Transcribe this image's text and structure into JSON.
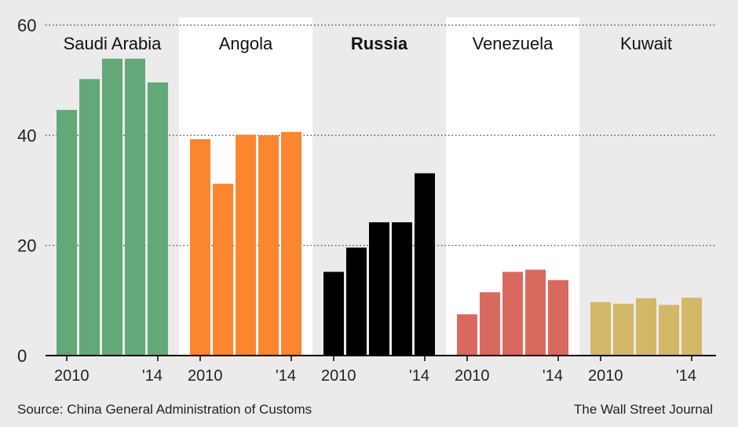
{
  "chart_data": {
    "type": "bar",
    "ylim": [
      0,
      60
    ],
    "yticks": [
      0,
      20,
      40,
      60
    ],
    "grid": "dotted-horizontal",
    "x_tick_labels": [
      "2010",
      "'14"
    ],
    "years": [
      2010,
      2011,
      2012,
      2013,
      2014
    ],
    "panels": [
      {
        "name": "Saudi Arabia",
        "bold": false,
        "color": "#63a878",
        "values": [
          44.6,
          50.2,
          53.9,
          53.9,
          49.6
        ]
      },
      {
        "name": "Angola",
        "bold": false,
        "color": "#fb8630",
        "values": [
          39.3,
          31.2,
          40.1,
          40.0,
          40.6
        ]
      },
      {
        "name": "Russia",
        "bold": true,
        "color": "#000000",
        "values": [
          15.2,
          19.6,
          24.2,
          24.2,
          33.1
        ]
      },
      {
        "name": "Venezuela",
        "bold": false,
        "color": "#d9695f",
        "values": [
          7.5,
          11.5,
          15.2,
          15.6,
          13.7
        ]
      },
      {
        "name": "Kuwait",
        "bold": false,
        "color": "#d3b869",
        "values": [
          9.7,
          9.4,
          10.4,
          9.2,
          10.5
        ]
      }
    ]
  },
  "footer": {
    "source": "Source: China General Administration of Customs",
    "credit": "The Wall Street Journal"
  }
}
